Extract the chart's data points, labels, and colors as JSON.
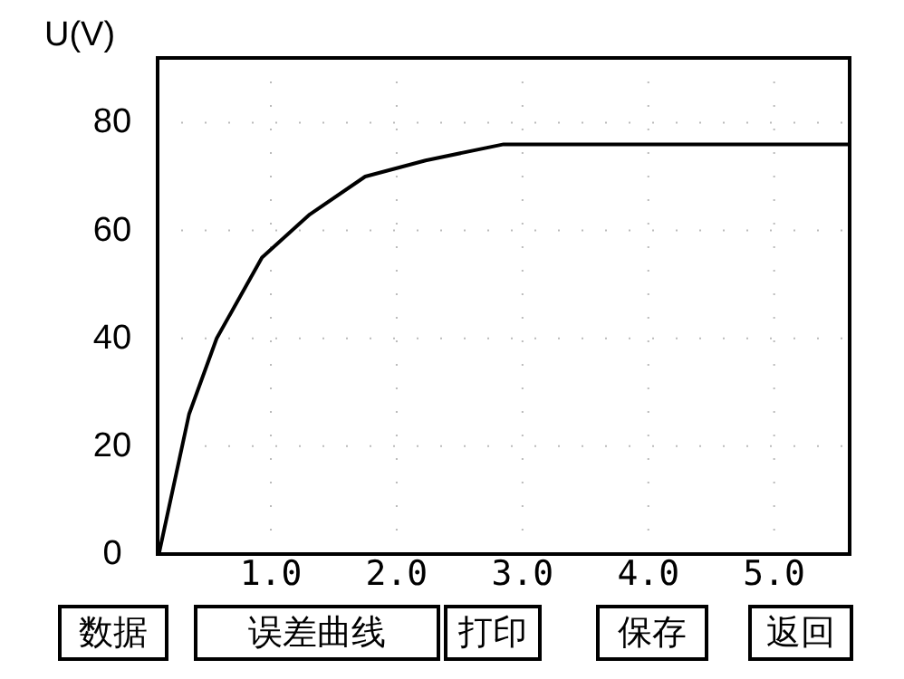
{
  "chart_data": {
    "type": "line",
    "ylabel": "U(V)",
    "x": [
      0.11,
      0.35,
      0.57,
      0.93,
      1.31,
      1.75,
      2.23,
      2.85,
      3.43,
      5.6
    ],
    "series": [
      {
        "color": "#000000",
        "values": [
          0,
          26,
          40,
          55,
          63,
          70,
          73,
          76,
          76,
          76
        ]
      }
    ],
    "xlim": [
      0.1,
      5.6
    ],
    "ylim": [
      0,
      92
    ],
    "xticks": [
      {
        "value": 1,
        "label": "1.0"
      },
      {
        "value": 2,
        "label": "2.0"
      },
      {
        "value": 3,
        "label": "3.0"
      },
      {
        "value": 4,
        "label": "4.0"
      },
      {
        "value": 5,
        "label": "5.0"
      }
    ],
    "yticks": [
      0,
      20,
      40,
      60,
      80
    ],
    "grid": true,
    "marker": "none",
    "line_style": "solid",
    "annotations": [
      "数据",
      "误差曲线",
      "打印",
      "保存",
      "返回"
    ]
  }
}
